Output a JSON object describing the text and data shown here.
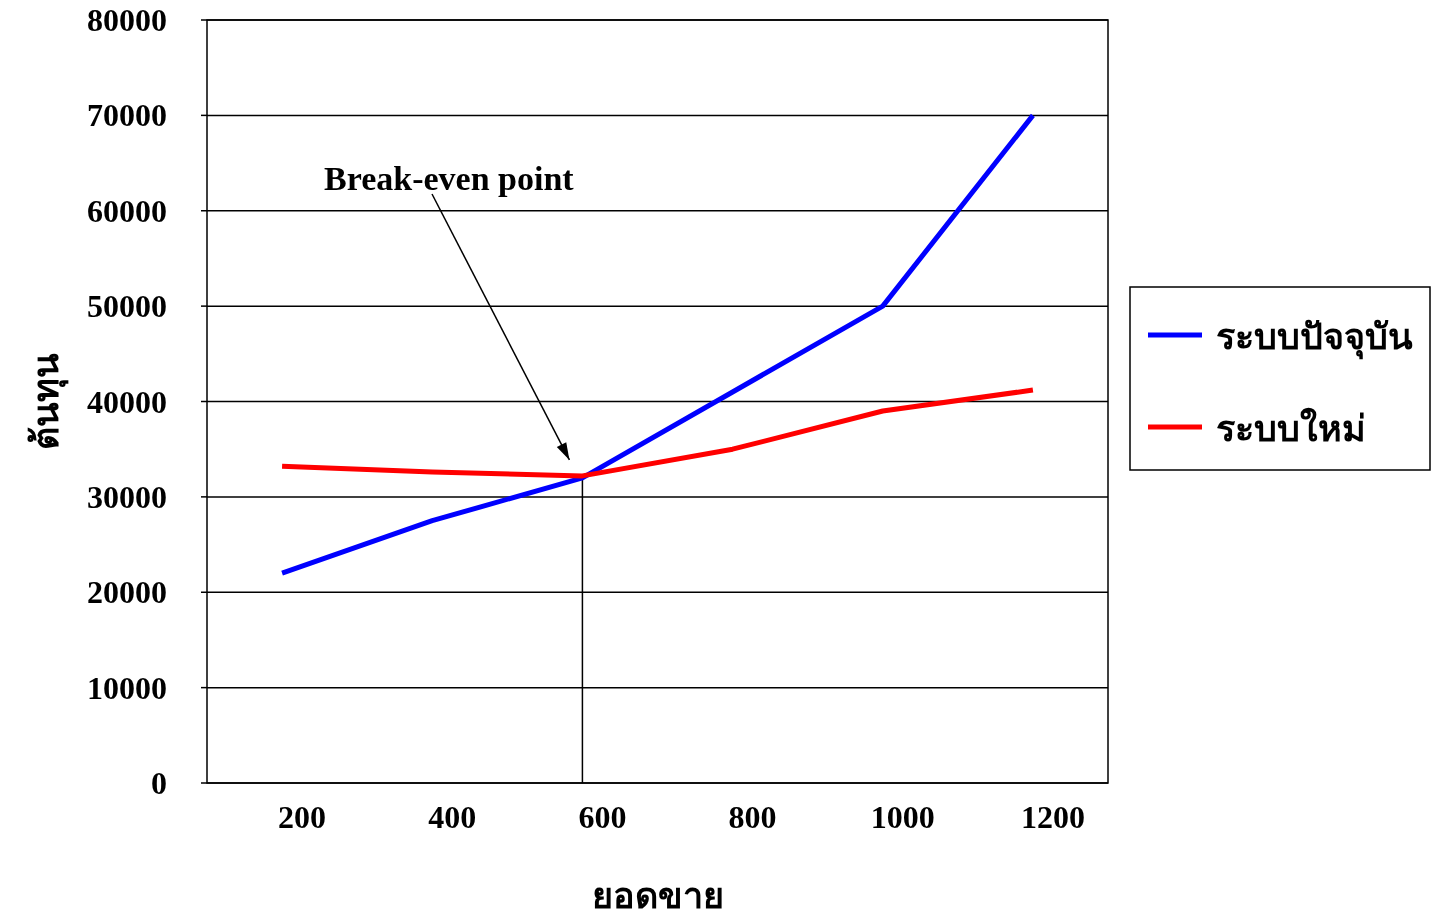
{
  "chart_data": {
    "type": "line",
    "xlabel": "ยอดขาย",
    "ylabel": "ต้นทุน",
    "categories": [
      "200",
      "400",
      "600",
      "800",
      "1000",
      "1200"
    ],
    "series": [
      {
        "name": "ระบบปัจจุบัน",
        "color": "#0000ff",
        "values": [
          22000,
          27500,
          32000,
          41000,
          50000,
          70000
        ]
      },
      {
        "name": "ระบบใหม่",
        "color": "#ff0000",
        "values": [
          33200,
          32600,
          32200,
          35000,
          39000,
          41200
        ]
      }
    ],
    "ylim": [
      0,
      80000
    ],
    "yticks": [
      0,
      10000,
      20000,
      30000,
      40000,
      50000,
      60000,
      70000,
      80000
    ],
    "grid": "y",
    "legend": "right",
    "marker": "none",
    "line_style": "solid",
    "annotations": [
      "Break-even point"
    ],
    "ref_lines": [
      {
        "axis": "x",
        "value": "600",
        "color": "#000000",
        "line_style": "solid"
      }
    ]
  }
}
